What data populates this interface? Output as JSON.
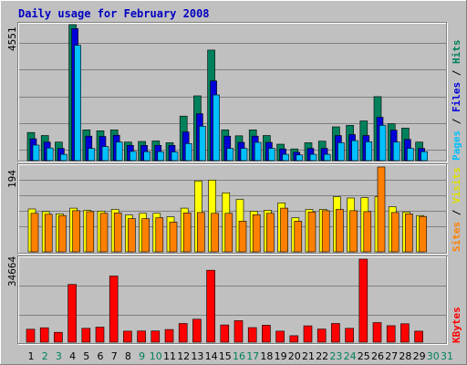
{
  "chart_data": {
    "type": "bar",
    "title": "Daily usage for February 2008",
    "categories": [
      "1",
      "2",
      "3",
      "4",
      "5",
      "6",
      "7",
      "8",
      "9",
      "10",
      "11",
      "12",
      "13",
      "14",
      "15",
      "16",
      "17",
      "18",
      "19",
      "20",
      "21",
      "22",
      "23",
      "24",
      "25",
      "26",
      "27",
      "28",
      "29",
      "30",
      "31"
    ],
    "weekend_days": [
      "2",
      "3",
      "9",
      "10",
      "16",
      "17",
      "23",
      "24",
      "30",
      "31"
    ],
    "days_with_data": 29,
    "panels": [
      {
        "id": "hits_files_pages",
        "ymax_label": "4551",
        "ylim": [
          0,
          4551
        ],
        "series": [
          {
            "name": "Hits",
            "color": "#00805c",
            "values": [
              940,
              840,
              620,
              4551,
              1030,
              1000,
              1030,
              620,
              640,
              660,
              600,
              1490,
              2170,
              3700,
              1030,
              830,
              1030,
              840,
              550,
              390,
              600,
              650,
              1130,
              1180,
              1330,
              2140,
              1230,
              1090,
              620
            ]
          },
          {
            "name": "Files",
            "color": "#0000d8",
            "values": [
              730,
              620,
              410,
              4420,
              820,
              810,
              850,
              510,
              510,
              510,
              510,
              960,
              1570,
              2670,
              820,
              610,
              820,
              610,
              390,
              280,
              410,
              410,
              840,
              870,
              840,
              1450,
              1020,
              710,
              410
            ]
          },
          {
            "name": "Pages",
            "color": "#00c0ff",
            "values": [
              520,
              420,
              210,
              3860,
              410,
              470,
              620,
              310,
              300,
              300,
              290,
              570,
              1150,
              2200,
              410,
              410,
              610,
              410,
              210,
              190,
              210,
              210,
              600,
              670,
              630,
              1180,
              620,
              410,
              300
            ]
          }
        ]
      },
      {
        "id": "visits_sites",
        "ymax_label": "194",
        "ylim": [
          0,
          194
        ],
        "series": [
          {
            "name": "Visits",
            "color": "#ffff00",
            "values": [
              98,
              92,
              87,
              100,
              95,
              93,
              97,
              84,
              88,
              88,
              80,
              100,
              162,
              164,
              135,
              120,
              93,
              95,
              112,
              78,
              97,
              97,
              126,
              123,
              124,
              126,
              103,
              91,
              83
            ]
          },
          {
            "name": "Sites",
            "color": "#ff8000",
            "values": [
              88,
              86,
              83,
              94,
              92,
              88,
              89,
              76,
              76,
              78,
              68,
              89,
              90,
              88,
              88,
              70,
              85,
              88,
              100,
              70,
              91,
              94,
              97,
              94,
              92,
              194,
              90,
              87,
              81
            ]
          }
        ]
      },
      {
        "id": "kbytes",
        "ymax_label": "34664",
        "ylim": [
          0,
          34664
        ],
        "series": [
          {
            "name": "KBytes",
            "color": "#ff0000",
            "values": [
              5400,
              6000,
              4100,
              24100,
              5800,
              6300,
              27600,
              4600,
              4700,
              4700,
              5300,
              7800,
              9600,
              30000,
              7200,
              9000,
              6100,
              7100,
              4600,
              2700,
              6800,
              5500,
              7800,
              5800,
              34664,
              8200,
              6900,
              7700,
              4600
            ]
          }
        ]
      }
    ]
  }
}
